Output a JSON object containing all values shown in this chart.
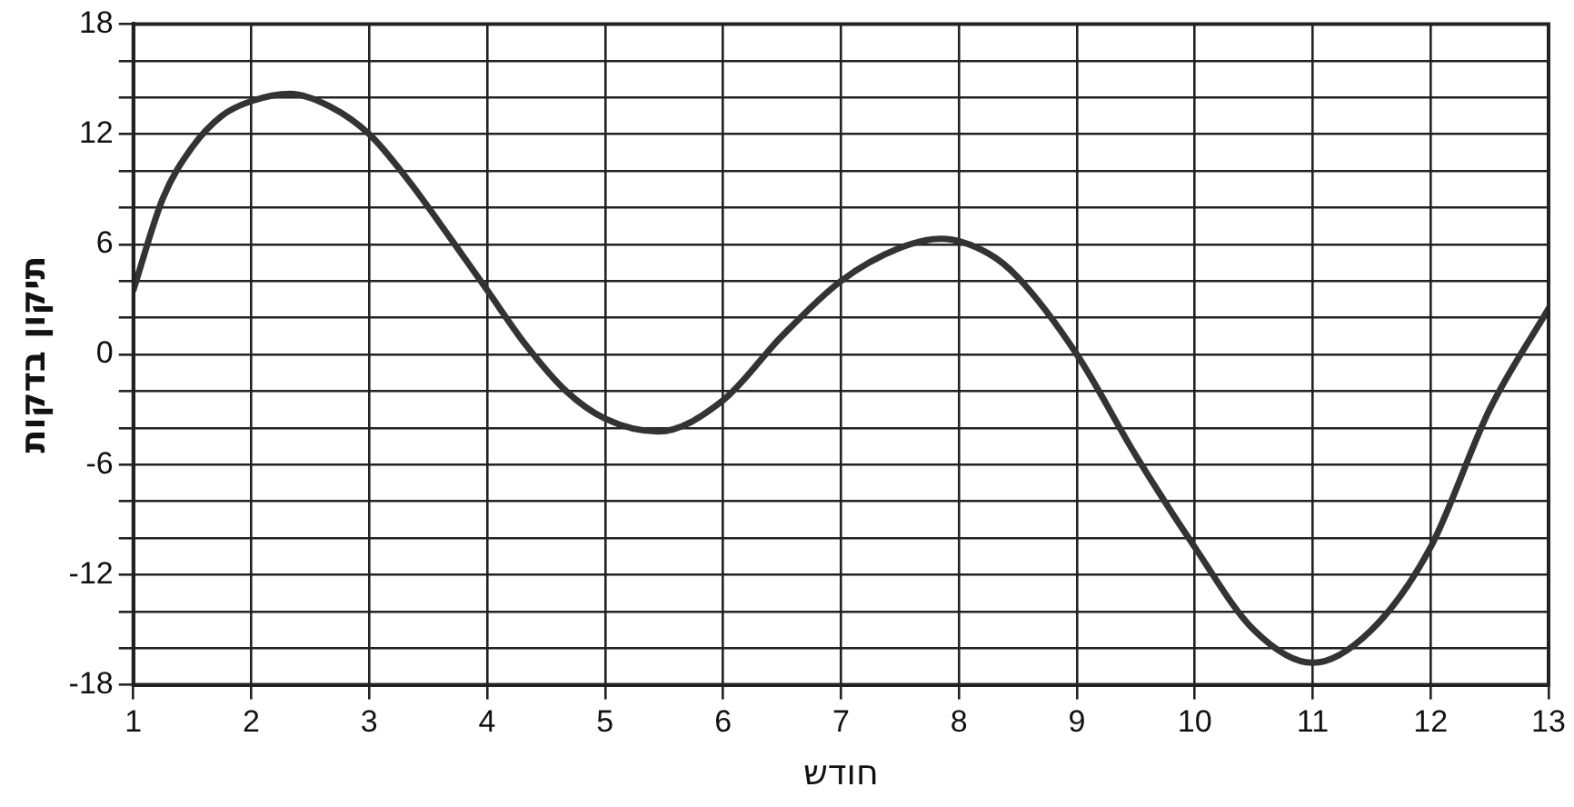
{
  "chart_data": {
    "type": "line",
    "xlabel": "חודש",
    "ylabel": "תיקון בדקות",
    "x": [
      1,
      1.25,
      1.5,
      1.75,
      2,
      2.33,
      2.67,
      3,
      3.33,
      3.67,
      4,
      4.33,
      4.67,
      5,
      5.45,
      6,
      6.5,
      7,
      7.5,
      7.85,
      8.25,
      8.5,
      9,
      9.5,
      10,
      10.5,
      11,
      11.5,
      12,
      12.5,
      13
    ],
    "series": [
      {
        "color": "#333333",
        "values": [
          3.5,
          8.5,
          11.3,
          13,
          13.8,
          14.2,
          13.5,
          12,
          9.5,
          6.5,
          3.5,
          0.5,
          -2,
          -3.5,
          -4.2,
          -2.5,
          1,
          4,
          5.8,
          6.3,
          5.5,
          4.2,
          0,
          -5.5,
          -10.5,
          -15,
          -16.8,
          -15,
          -10.5,
          -3,
          2.5
        ]
      }
    ],
    "xlim": [
      1,
      13
    ],
    "xticks": [
      1,
      2,
      3,
      4,
      5,
      6,
      7,
      8,
      9,
      10,
      11,
      12,
      13
    ],
    "ylim": [
      -18,
      18
    ],
    "yticks": [
      -18,
      {
        "value": -16,
        "label": null
      },
      {
        "value": -14,
        "label": null
      },
      -12,
      {
        "value": -10,
        "label": null
      },
      {
        "value": -8,
        "label": null
      },
      -6,
      {
        "value": -4,
        "label": null
      },
      {
        "value": -2,
        "label": null
      },
      0,
      {
        "value": 2,
        "label": null
      },
      {
        "value": 4,
        "label": null
      },
      6,
      {
        "value": 8,
        "label": null
      },
      {
        "value": 10,
        "label": null
      },
      12,
      {
        "value": 14,
        "label": null
      },
      {
        "value": 16,
        "label": null
      },
      18
    ],
    "grid": true,
    "legend": false,
    "marker": "none",
    "line_style": "solid"
  }
}
